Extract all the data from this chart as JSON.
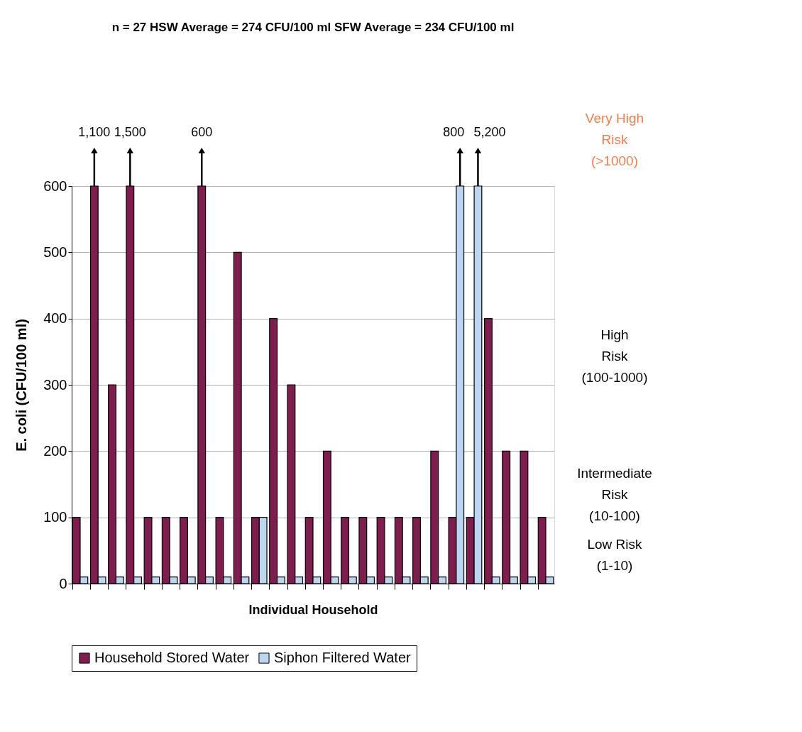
{
  "chart_data": {
    "type": "bar",
    "title": "n = 27      HSW Average = 274 CFU/100 ml      SFW Average = 234 CFU/100 ml",
    "xlabel": "Individual Household",
    "ylabel": "E. coli (CFU/100 ml)",
    "categories": [
      null,
      null,
      null,
      null,
      null,
      null,
      null,
      null,
      null,
      null,
      null,
      null,
      null,
      null,
      null,
      null,
      null,
      null,
      null,
      null,
      null,
      null,
      null,
      null,
      null,
      null,
      null
    ],
    "series": [
      {
        "name": "Household Stored Water",
        "color": "#7f1d4e",
        "values": [
          100,
          600,
          300,
          600,
          100,
          100,
          100,
          600,
          100,
          500,
          100,
          400,
          300,
          100,
          200,
          100,
          100,
          100,
          100,
          100,
          200,
          100,
          100,
          400,
          200,
          200,
          100
        ]
      },
      {
        "name": "Siphon Filtered Water",
        "color": "#bcd6f2",
        "values": [
          10,
          10,
          10,
          10,
          10,
          10,
          10,
          10,
          10,
          10,
          100,
          10,
          10,
          10,
          10,
          10,
          10,
          10,
          10,
          10,
          10,
          600,
          600,
          10,
          10,
          10,
          10
        ]
      }
    ],
    "ylim": [
      0,
      600
    ],
    "yticks": [
      0,
      100,
      200,
      300,
      400,
      500,
      600
    ],
    "grid": "y",
    "legend": "bottom",
    "tick_labels": "y",
    "annotations": [
      "1,100",
      "1,500",
      "600",
      "800",
      "5,200",
      "Very High\nRisk\n(>1000)",
      "High\nRisk\n(100-1000)",
      "Intermediate\nRisk\n(10-100)",
      "Low Risk\n(1-10)"
    ]
  }
}
